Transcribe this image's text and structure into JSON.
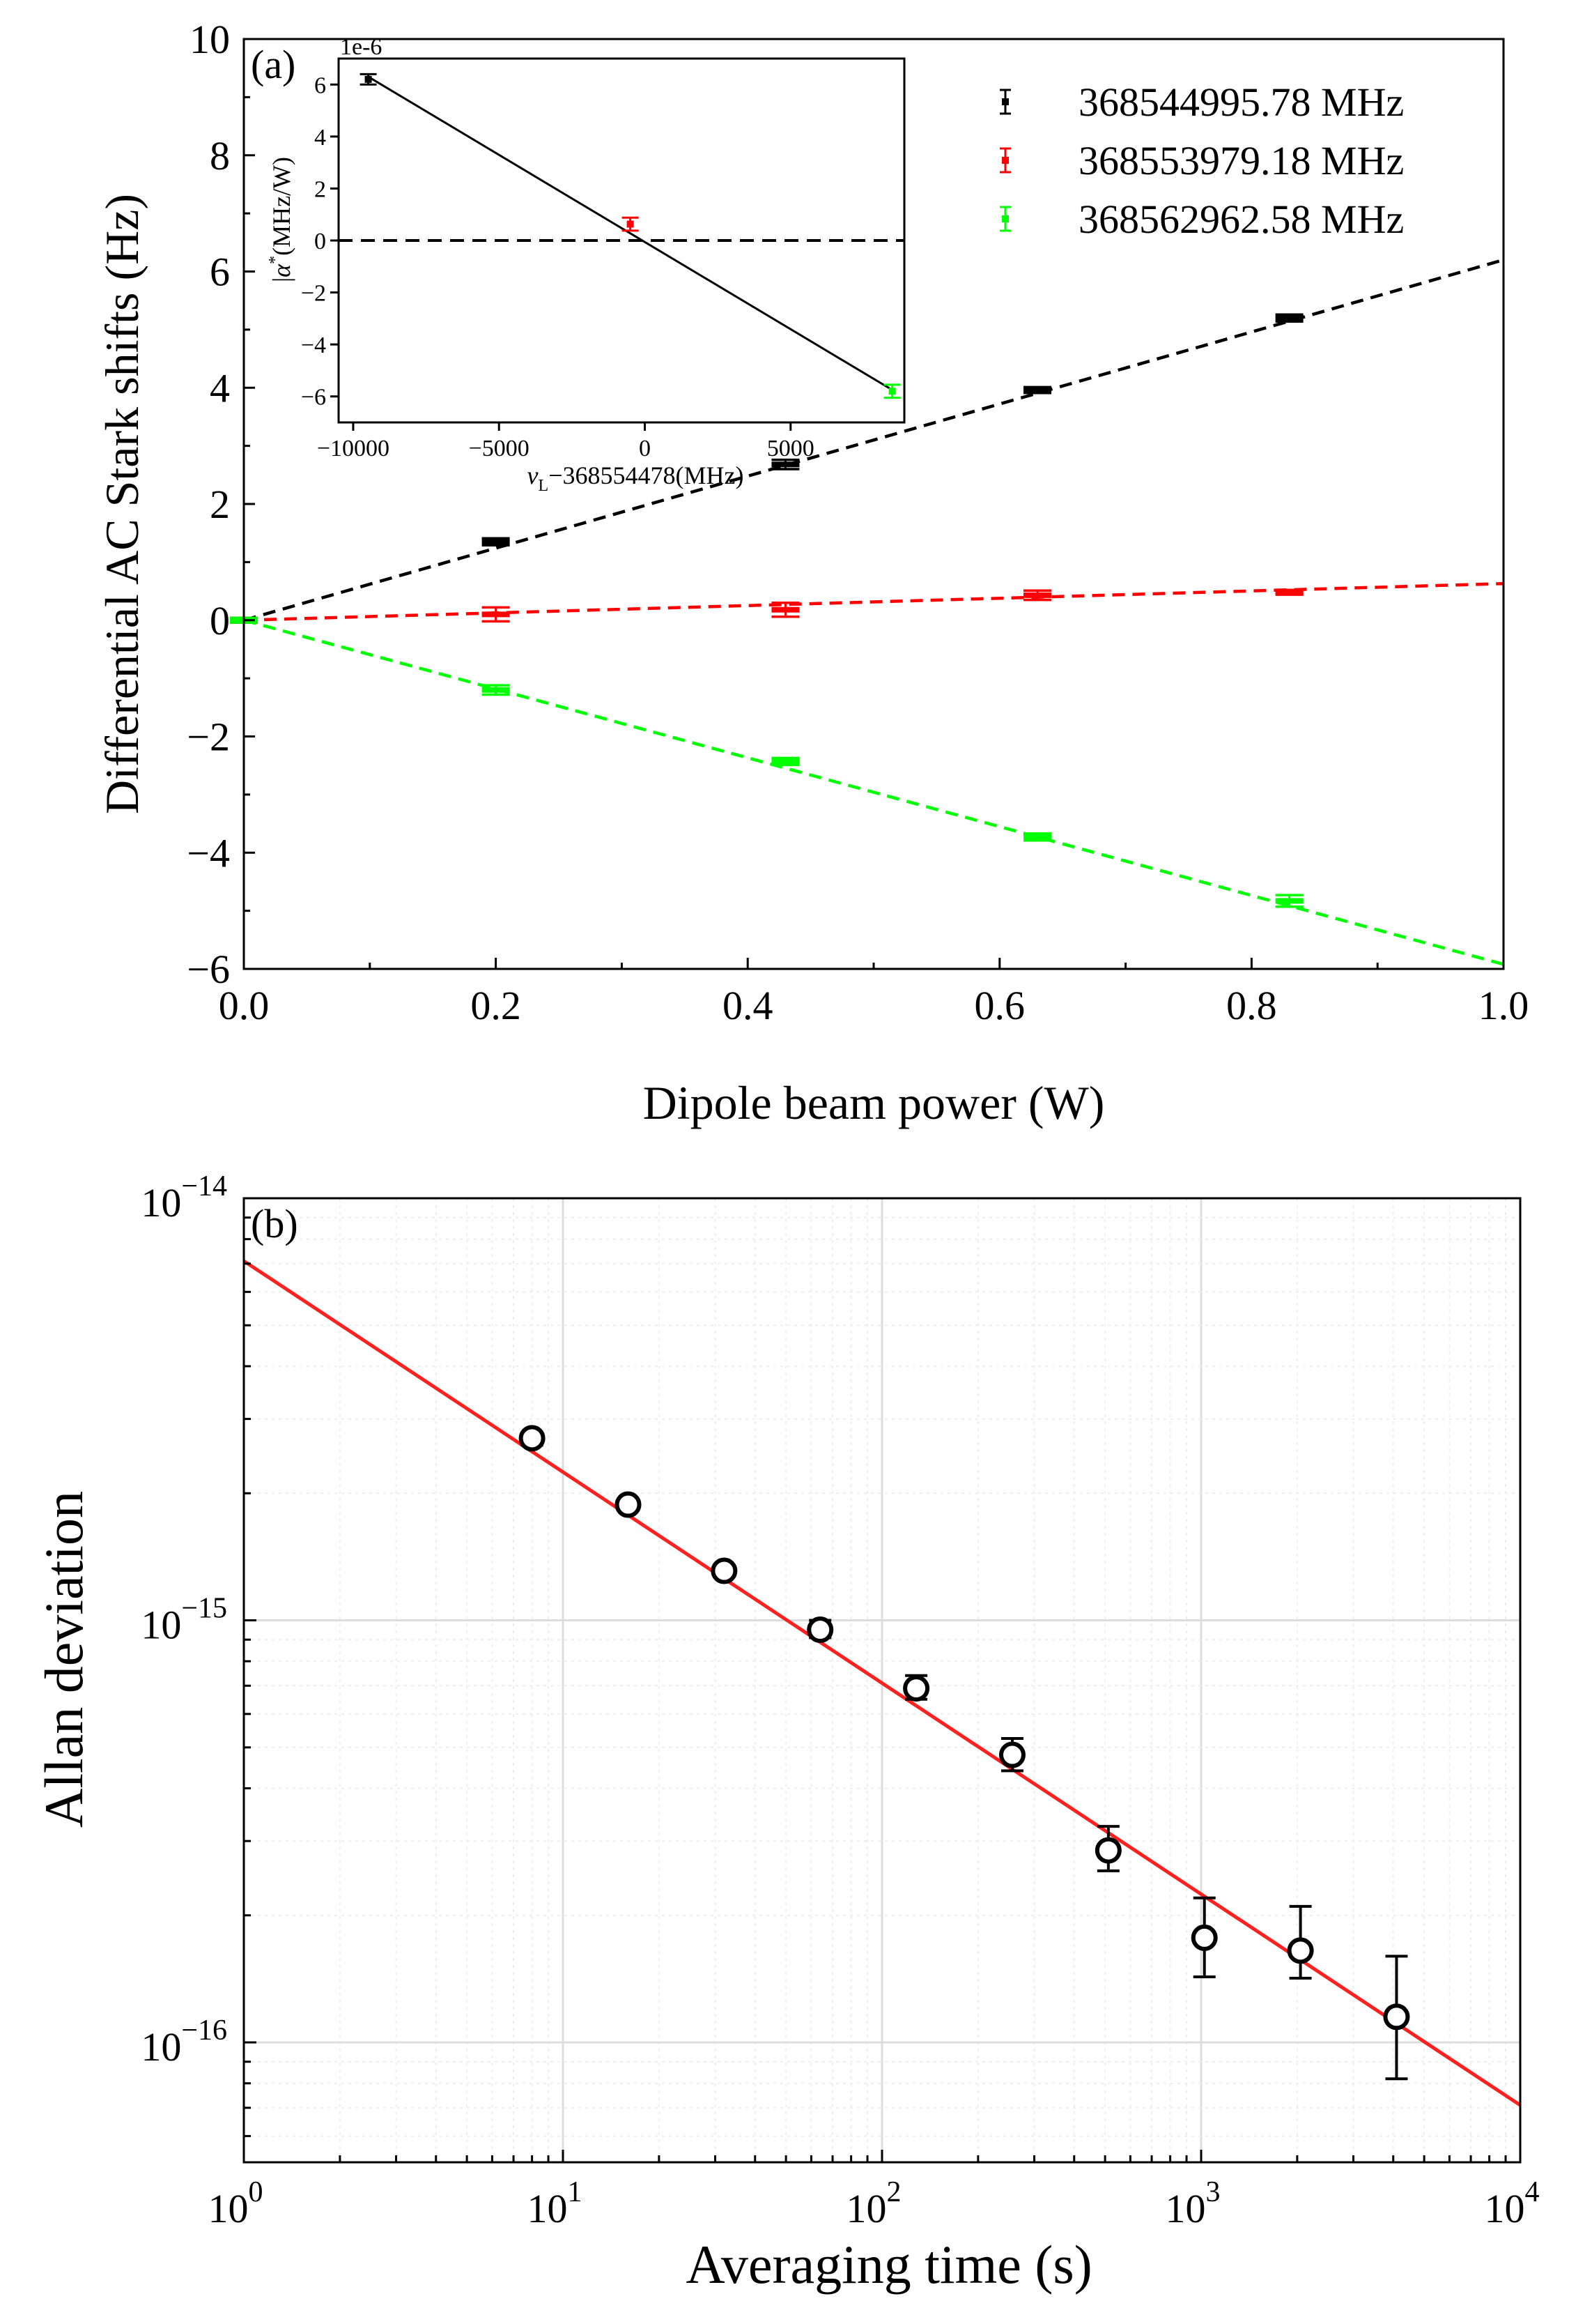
{
  "chart_data": [
    {
      "type": "scatter",
      "panel_label": "(a)",
      "xlabel": "Dipole beam power (W)",
      "ylabel": "Differential AC Stark shifts (Hz)",
      "xlim": [
        0,
        1
      ],
      "ylim": [
        -6,
        10
      ],
      "xticks": [
        0,
        0.2,
        0.4,
        0.6,
        0.8,
        1.0
      ],
      "xtick_labels": [
        "0.0",
        "0.2",
        "0.4",
        "0.6",
        "0.8",
        "1.0"
      ],
      "yticks": [
        -6,
        -4,
        -2,
        0,
        2,
        4,
        6,
        8,
        10
      ],
      "ytick_labels": [
        "−6",
        "−4",
        "−2",
        "0",
        "2",
        "4",
        "6",
        "8",
        "10"
      ],
      "legend_position": "top-right",
      "series": [
        {
          "name": "368544995.78 MHz",
          "color": "#000000",
          "x": [
            0.0,
            0.2,
            0.43,
            0.63,
            0.83
          ],
          "y": [
            0.0,
            1.35,
            2.68,
            3.96,
            5.2
          ],
          "err": [
            0.04,
            0.06,
            0.08,
            0.05,
            0.06
          ],
          "fit": {
            "slope": 6.2,
            "intercept": 0.0
          }
        },
        {
          "name": "368553979.18 MHz",
          "color": "#ff0000",
          "x": [
            0.0,
            0.2,
            0.43,
            0.63,
            0.83
          ],
          "y": [
            0.0,
            0.1,
            0.18,
            0.43,
            0.48
          ],
          "err": [
            0.04,
            0.12,
            0.12,
            0.08,
            0.04
          ],
          "fit": {
            "slope": 0.63,
            "intercept": 0.0
          }
        },
        {
          "name": "368562962.58 MHz",
          "color": "#00ff00",
          "x": [
            0.0,
            0.2,
            0.43,
            0.63,
            0.83
          ],
          "y": [
            0.0,
            -1.2,
            -2.43,
            -3.73,
            -4.83
          ],
          "err": [
            0.04,
            0.08,
            0.06,
            0.06,
            0.1
          ],
          "fit": {
            "slope": -5.92,
            "intercept": 0.0
          }
        }
      ],
      "inset": {
        "xlabel": "v_L−368554478(MHz)",
        "xlabel_main": "v",
        "xlabel_sub": "L",
        "xlabel_rest": "−368554478(MHz)",
        "ylabel": "α*(MHz/W)",
        "ylabel_main": "α",
        "ylabel_sup": "*",
        "ylabel_rest": "(MHz/W)",
        "ylabel_prefix": "|",
        "offset_text": "1e-6",
        "xlim": [
          -10500,
          8900
        ],
        "ylim": [
          -7,
          7
        ],
        "xticks": [
          -10000,
          -5000,
          0,
          5000
        ],
        "xtick_labels": [
          "−10000",
          "−5000",
          "0",
          "5000"
        ],
        "yticks": [
          -6,
          -4,
          -2,
          0,
          2,
          4,
          6
        ],
        "ytick_labels": [
          "−6",
          "−4",
          "−2",
          "0",
          "2",
          "4",
          "6"
        ],
        "points": [
          {
            "x": -9483,
            "y": 6.2,
            "err": 0.2,
            "color": "#000000"
          },
          {
            "x": -499,
            "y": 0.63,
            "err": 0.25,
            "color": "#ff0000"
          },
          {
            "x": 8485,
            "y": -5.8,
            "err": 0.25,
            "color": "#00ff00"
          }
        ],
        "fit_line": {
          "x": [
            -9483,
            8485
          ],
          "y": [
            6.3,
            -5.75
          ]
        },
        "zero_line": 0
      }
    },
    {
      "type": "scatter",
      "panel_label": "(b)",
      "xlabel": "Averaging time (s)",
      "ylabel": "Allan deviation",
      "xscale": "log",
      "yscale": "log",
      "xlim": [
        1,
        10000
      ],
      "ylim": [
        5.2e-17,
        1e-14
      ],
      "grid": true,
      "xtick_base": [
        "10",
        "10",
        "10",
        "10",
        "10"
      ],
      "xtick_exp": [
        "0",
        "1",
        "2",
        "3",
        "4"
      ],
      "ytick_base": [
        "10",
        "10",
        "10"
      ],
      "ytick_exp": [
        "−14",
        "−15",
        "−16"
      ],
      "series": [
        {
          "name": "",
          "color": "#000000",
          "x": [
            8,
            16,
            32,
            64,
            128,
            256,
            512,
            1024,
            2048,
            4096
          ],
          "y": [
            2.7e-15,
            1.88e-15,
            1.31e-15,
            9.5e-16,
            6.9e-16,
            4.8e-16,
            2.85e-16,
            1.77e-16,
            1.65e-16,
            1.15e-16
          ],
          "err_low": [
            2.6e-15,
            1.83e-15,
            1.27e-15,
            9.1e-16,
            6.5e-16,
            4.4e-16,
            2.55e-16,
            1.43e-16,
            1.42e-16,
            8.2e-17
          ],
          "err_high": [
            2.78e-15,
            1.93e-15,
            1.35e-15,
            1e-15,
            7.4e-16,
            5.25e-16,
            3.25e-16,
            2.2e-16,
            2.1e-16,
            1.6e-16
          ]
        }
      ],
      "fit": {
        "color": "#ff2020",
        "x": [
          1,
          10000
        ],
        "y": [
          7.1e-15,
          7.1e-17
        ]
      }
    }
  ]
}
